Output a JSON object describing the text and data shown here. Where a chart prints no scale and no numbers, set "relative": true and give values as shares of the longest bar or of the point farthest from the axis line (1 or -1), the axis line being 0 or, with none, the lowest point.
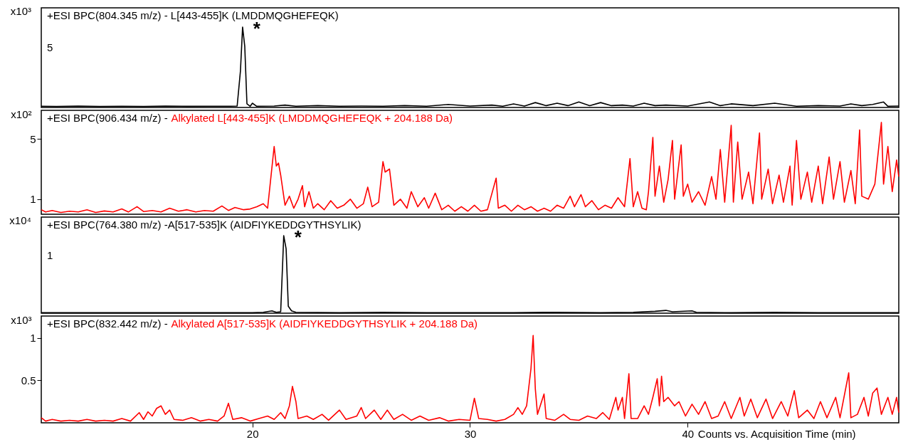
{
  "chart_data": [
    {
      "type": "line",
      "title": "+ESI BPC(804.345 m/z) - L[443-455]K (LMDDMQGHEFEQK)",
      "ylabel": "x10³",
      "tick_labels": "y",
      "relative": true,
      "xlim": [
        10.3,
        49.7
      ],
      "annotations": [
        "5",
        "*"
      ],
      "series": [
        {
          "color": "#000000",
          "x": [
            10.3,
            11,
            12,
            13,
            14,
            15,
            16,
            17,
            18,
            19,
            19.3,
            19.45,
            19.55,
            19.65,
            19.75,
            19.9,
            20.0,
            20.2,
            21,
            21.5,
            22,
            23,
            24,
            25,
            26,
            27,
            28,
            29,
            30,
            31,
            31.5,
            32,
            32.5,
            33,
            33.5,
            34,
            34.5,
            35,
            35.5,
            36,
            36.5,
            37,
            37.5,
            38,
            38.5,
            39,
            40,
            41,
            41.5,
            42,
            43,
            44,
            45,
            46,
            47,
            47.5,
            48,
            48.5,
            49,
            49.2,
            49.7
          ],
          "values": [
            0.015,
            0.012,
            0.018,
            0.012,
            0.015,
            0.012,
            0.018,
            0.014,
            0.015,
            0.015,
            0.018,
            0.45,
            1,
            0.76,
            0.045,
            0.015,
            0.053,
            0.015,
            0.018,
            0.03,
            0.015,
            0.023,
            0.015,
            0.018,
            0.015,
            0.023,
            0.015,
            0.038,
            0.018,
            0.03,
            0.015,
            0.045,
            0.018,
            0.061,
            0.023,
            0.053,
            0.023,
            0.068,
            0.023,
            0.061,
            0.023,
            0.03,
            0.018,
            0.053,
            0.023,
            0.03,
            0.018,
            0.068,
            0.023,
            0.045,
            0.023,
            0.053,
            0.015,
            0.023,
            0.018,
            0.045,
            0.023,
            0.038,
            0.068,
            0.015,
            0.018
          ]
        }
      ]
    },
    {
      "type": "line",
      "title": "+ESI BPC(906.434 m/z) -",
      "subtitle": "Alkylated L[443-455]K (LMDDMQGHEFEQK + 204.188 Da)",
      "ylabel": "x10²",
      "tick_labels": "y",
      "xlim": [
        10.3,
        49.7
      ],
      "ylim": [
        0,
        6.9
      ],
      "yticks": [
        1,
        5
      ],
      "series": [
        {
          "color": "#ff0000",
          "x": [
            10.3,
            10.5,
            10.8,
            11.2,
            11.6,
            12.0,
            12.4,
            12.8,
            13.2,
            13.6,
            14.0,
            14.3,
            14.7,
            15.0,
            15.4,
            15.8,
            16.2,
            16.6,
            17.0,
            17.4,
            17.8,
            18.2,
            18.6,
            18.9,
            19.2,
            19.6,
            19.9,
            20.2,
            20.5,
            20.7,
            21.0,
            21.1,
            21.2,
            21.3,
            21.5,
            21.7,
            21.9,
            22.1,
            22.3,
            22.4,
            22.6,
            22.8,
            23.0,
            23.3,
            23.6,
            23.9,
            24.2,
            24.5,
            24.8,
            25.1,
            25.3,
            25.5,
            25.8,
            26.0,
            26.1,
            26.3,
            26.5,
            26.8,
            27.1,
            27.3,
            27.6,
            27.9,
            28.1,
            28.4,
            28.7,
            29.0,
            29.3,
            29.6,
            29.9,
            30.2,
            30.5,
            30.8,
            31.2,
            31.3,
            31.6,
            31.9,
            32.2,
            32.5,
            32.8,
            33.1,
            33.4,
            33.7,
            34.0,
            34.3,
            34.6,
            34.8,
            35.1,
            35.3,
            35.6,
            35.9,
            36.2,
            36.5,
            36.8,
            37.1,
            37.35,
            37.5,
            37.7,
            37.9,
            38.1,
            38.2,
            38.4,
            38.5,
            38.7,
            38.9,
            39.1,
            39.3,
            39.4,
            39.7,
            39.8,
            40.0,
            40.2,
            40.5,
            40.8,
            41.1,
            41.3,
            41.5,
            41.7,
            42.0,
            42.1,
            42.3,
            42.5,
            42.8,
            43.0,
            43.3,
            43.4,
            43.7,
            43.9,
            44.2,
            44.4,
            44.7,
            44.8,
            45.0,
            45.2,
            45.5,
            45.7,
            46.0,
            46.2,
            46.5,
            46.7,
            47.0,
            47.2,
            47.5,
            47.7,
            47.9,
            48.0,
            48.3,
            48.6,
            48.9,
            49.0,
            49.2,
            49.4,
            49.6,
            49.7
          ],
          "values": [
            0.3,
            0.15,
            0.25,
            0.12,
            0.2,
            0.15,
            0.3,
            0.12,
            0.22,
            0.15,
            0.35,
            0.15,
            0.5,
            0.18,
            0.25,
            0.15,
            0.4,
            0.2,
            0.3,
            0.15,
            0.25,
            0.2,
            0.55,
            0.25,
            0.45,
            0.3,
            0.35,
            0.5,
            0.7,
            0.4,
            4.5,
            3.2,
            3.4,
            2.6,
            0.6,
            1.2,
            0.4,
            1.0,
            1.9,
            0.5,
            1.5,
            0.4,
            0.7,
            0.3,
            0.9,
            0.4,
            0.6,
            1.0,
            0.4,
            0.7,
            1.8,
            0.5,
            0.8,
            3.5,
            2.8,
            3.0,
            0.6,
            1.0,
            0.4,
            1.5,
            0.5,
            1.1,
            0.4,
            1.4,
            0.3,
            0.6,
            0.2,
            0.5,
            0.2,
            0.6,
            0.2,
            0.3,
            2.4,
            0.4,
            0.6,
            0.2,
            0.6,
            0.3,
            0.5,
            0.2,
            0.4,
            0.2,
            0.6,
            0.4,
            1.2,
            0.5,
            1.3,
            0.5,
            0.9,
            0.3,
            0.6,
            0.4,
            1.1,
            0.5,
            3.7,
            0.5,
            1.5,
            0.4,
            0.3,
            1.5,
            5.1,
            1.2,
            3.2,
            0.8,
            2.3,
            4.9,
            1.0,
            4.6,
            1.2,
            2.0,
            0.8,
            1.5,
            0.6,
            2.5,
            1.0,
            4.3,
            0.8,
            5.9,
            0.8,
            4.8,
            1.0,
            2.8,
            0.7,
            5.4,
            1.0,
            3.0,
            0.7,
            2.6,
            0.8,
            3.2,
            0.6,
            4.9,
            1.0,
            2.8,
            0.8,
            3.2,
            0.7,
            3.8,
            1.0,
            3.5,
            0.8,
            2.9,
            0.7,
            5.6,
            1.2,
            1.0,
            2.0,
            6.1,
            2.0,
            4.5,
            1.5,
            3.6,
            2.5
          ]
        }
      ]
    },
    {
      "type": "line",
      "title": "+ESI BPC(764.380 m/z) -A[517-535]K (AIDFIYKEDDGYTHSYLIK)",
      "ylabel": "x10⁴",
      "tick_labels": "y",
      "relative": true,
      "xlim": [
        10.3,
        49.7
      ],
      "annotations": [
        "1",
        "*"
      ],
      "series": [
        {
          "color": "#000000",
          "x": [
            10.3,
            12,
            14,
            16,
            18,
            20,
            20.5,
            20.9,
            21.1,
            21.3,
            21.4,
            21.44,
            21.55,
            21.65,
            21.8,
            22,
            24,
            26,
            28,
            30,
            32,
            34,
            36,
            37.5,
            38.5,
            39.0,
            39.3,
            40.2,
            40.4,
            42,
            44,
            46,
            48,
            49.7
          ],
          "values": [
            0.006,
            0.006,
            0.006,
            0.006,
            0.006,
            0.006,
            0.012,
            0.03,
            0.012,
            0.018,
            0.71,
            1,
            0.83,
            0.09,
            0.03,
            0.012,
            0.006,
            0.012,
            0.006,
            0.006,
            0.006,
            0.012,
            0.006,
            0.012,
            0.024,
            0.036,
            0.018,
            0.03,
            0.012,
            0.006,
            0.012,
            0.006,
            0.006,
            0.006
          ]
        }
      ]
    },
    {
      "type": "line",
      "title": "+ESI BPC(832.442 m/z) -",
      "subtitle": "Alkylated A[517-535]K (AIDFIYKEDDGYTHSYLIK + 204.188 Da)",
      "ylabel": "x10³",
      "xlabel": "Counts vs. Acquisition Time (min)",
      "xlim": [
        10.3,
        49.7
      ],
      "ylim": [
        0,
        1.26
      ],
      "xticks": [
        20,
        30,
        40
      ],
      "yticks": [
        0.5,
        1
      ],
      "series": [
        {
          "color": "#ff0000",
          "x": [
            10.3,
            10.5,
            10.8,
            11.2,
            11.6,
            12.0,
            12.4,
            12.8,
            13.2,
            13.6,
            14.0,
            14.4,
            14.8,
            15.0,
            15.2,
            15.4,
            15.6,
            15.8,
            16.0,
            16.2,
            16.4,
            16.8,
            17.2,
            17.6,
            18.0,
            18.4,
            18.7,
            18.9,
            19.1,
            19.5,
            19.9,
            20.3,
            20.7,
            21.0,
            21.3,
            21.5,
            21.7,
            21.84,
            22.0,
            22.1,
            22.5,
            22.8,
            23.2,
            23.5,
            24.0,
            24.3,
            24.8,
            25.0,
            25.2,
            25.6,
            25.9,
            26.2,
            26.5,
            26.9,
            27.3,
            27.7,
            28.1,
            28.6,
            29.0,
            29.5,
            30.0,
            30.2,
            30.4,
            30.8,
            31.2,
            31.6,
            32.0,
            32.2,
            32.4,
            32.6,
            32.8,
            32.9,
            33.0,
            33.1,
            33.4,
            33.5,
            33.9,
            34.3,
            34.6,
            35.0,
            35.4,
            35.8,
            36.1,
            36.4,
            36.7,
            36.8,
            37.0,
            37.1,
            37.3,
            37.4,
            37.7,
            38.0,
            38.2,
            38.4,
            38.6,
            38.7,
            38.8,
            38.9,
            39.1,
            39.4,
            39.6,
            39.9,
            40.2,
            40.5,
            40.8,
            41.1,
            41.4,
            41.7,
            42.0,
            42.4,
            42.6,
            42.9,
            43.2,
            43.6,
            43.9,
            44.3,
            44.6,
            44.9,
            45.1,
            45.5,
            45.8,
            46.1,
            46.4,
            46.8,
            47.0,
            47.4,
            47.5,
            47.8,
            48.1,
            48.3,
            48.5,
            48.7,
            48.9,
            49.2,
            49.4,
            49.6,
            49.7
          ],
          "values": [
            0.06,
            0.02,
            0.04,
            0.02,
            0.03,
            0.02,
            0.04,
            0.02,
            0.03,
            0.02,
            0.05,
            0.02,
            0.12,
            0.04,
            0.13,
            0.08,
            0.17,
            0.2,
            0.1,
            0.15,
            0.04,
            0.03,
            0.06,
            0.02,
            0.04,
            0.02,
            0.08,
            0.23,
            0.04,
            0.06,
            0.02,
            0.05,
            0.08,
            0.04,
            0.12,
            0.05,
            0.2,
            0.43,
            0.25,
            0.05,
            0.08,
            0.04,
            0.1,
            0.03,
            0.15,
            0.04,
            0.08,
            0.18,
            0.05,
            0.15,
            0.04,
            0.15,
            0.04,
            0.1,
            0.03,
            0.08,
            0.03,
            0.06,
            0.02,
            0.04,
            0.03,
            0.29,
            0.05,
            0.04,
            0.02,
            0.04,
            0.1,
            0.18,
            0.1,
            0.2,
            0.64,
            1.03,
            0.4,
            0.1,
            0.34,
            0.05,
            0.03,
            0.1,
            0.04,
            0.03,
            0.08,
            0.05,
            0.12,
            0.04,
            0.3,
            0.15,
            0.3,
            0.05,
            0.58,
            0.05,
            0.05,
            0.2,
            0.1,
            0.3,
            0.52,
            0.2,
            0.55,
            0.25,
            0.3,
            0.2,
            0.25,
            0.08,
            0.22,
            0.1,
            0.25,
            0.05,
            0.08,
            0.25,
            0.05,
            0.3,
            0.08,
            0.28,
            0.06,
            0.28,
            0.05,
            0.25,
            0.08,
            0.38,
            0.06,
            0.15,
            0.05,
            0.25,
            0.06,
            0.3,
            0.06,
            0.59,
            0.06,
            0.1,
            0.3,
            0.08,
            0.35,
            0.41,
            0.1,
            0.3,
            0.1,
            0.3,
            0.12
          ]
        }
      ]
    }
  ]
}
